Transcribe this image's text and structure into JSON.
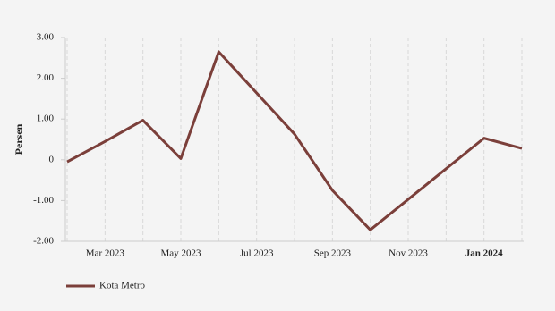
{
  "chart_data": {
    "type": "line",
    "y_label": "Persen",
    "categories": [
      null,
      "Mar 2023",
      null,
      "May 2023",
      null,
      "Jul 2023",
      null,
      "Sep 2023",
      null,
      "Nov 2023",
      null,
      "Jan 2024",
      null
    ],
    "series": [
      {
        "name": "Kota Metro",
        "color": "#7b3f3a",
        "values": [
          -0.05,
          0.45,
          0.97,
          0.03,
          2.65,
          1.64,
          0.63,
          -0.75,
          -1.72,
          -0.97,
          -0.22,
          0.53,
          0.28
        ]
      }
    ],
    "ylim": [
      -2,
      3
    ],
    "yticks": [
      {
        "value": -2,
        "label": "-2.00"
      },
      {
        "value": -1,
        "label": "-1.00"
      },
      0,
      {
        "value": 1,
        "label": "1.00"
      },
      {
        "value": 2,
        "label": "2.00"
      },
      {
        "value": 3,
        "label": "3.00"
      }
    ],
    "grid": true
  }
}
